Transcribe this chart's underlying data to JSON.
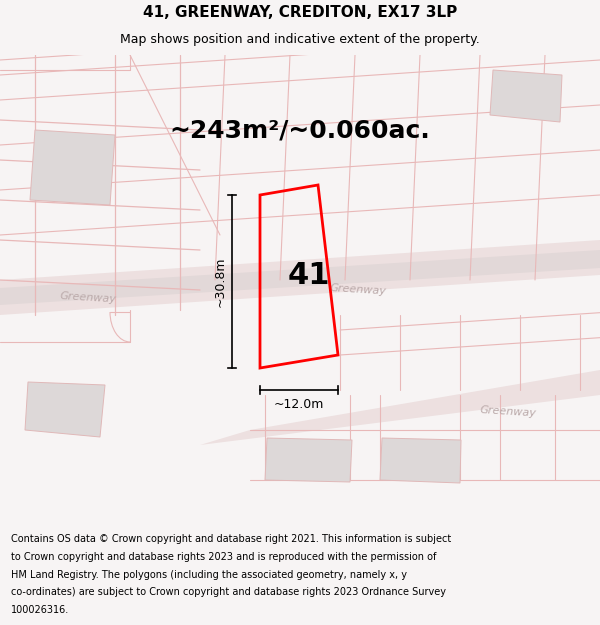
{
  "title": "41, GREENWAY, CREDITON, EX17 3LP",
  "subtitle": "Map shows position and indicative extent of the property.",
  "area_text": "~243m²/~0.060ac.",
  "width_label": "~12.0m",
  "height_label": "~30.8m",
  "number_label": "41",
  "footer_lines": [
    "Contains OS data © Crown copyright and database right 2021. This information is subject",
    "to Crown copyright and database rights 2023 and is reproduced with the permission of",
    "HM Land Registry. The polygons (including the associated geometry, namely x, y",
    "co-ordinates) are subject to Crown copyright and database rights 2023 Ordnance Survey",
    "100026316."
  ],
  "bg_color": "#f7f4f4",
  "map_bg": "#ffffff",
  "road_fill": "#e8d8d8",
  "road_edge": "#d4b4b4",
  "bldg_fill": "#ddd8d8",
  "bldg_edge": "#e0b8b8",
  "line_color": "#e8b8b8",
  "plot_color": "#ff0000",
  "dim_color": "#000000",
  "street_color": "#bbaaaa",
  "title_fontsize": 11,
  "subtitle_fontsize": 9,
  "area_fontsize": 18,
  "number_fontsize": 22,
  "dim_label_fontsize": 9,
  "street_fontsize": 8,
  "footer_fontsize": 7
}
